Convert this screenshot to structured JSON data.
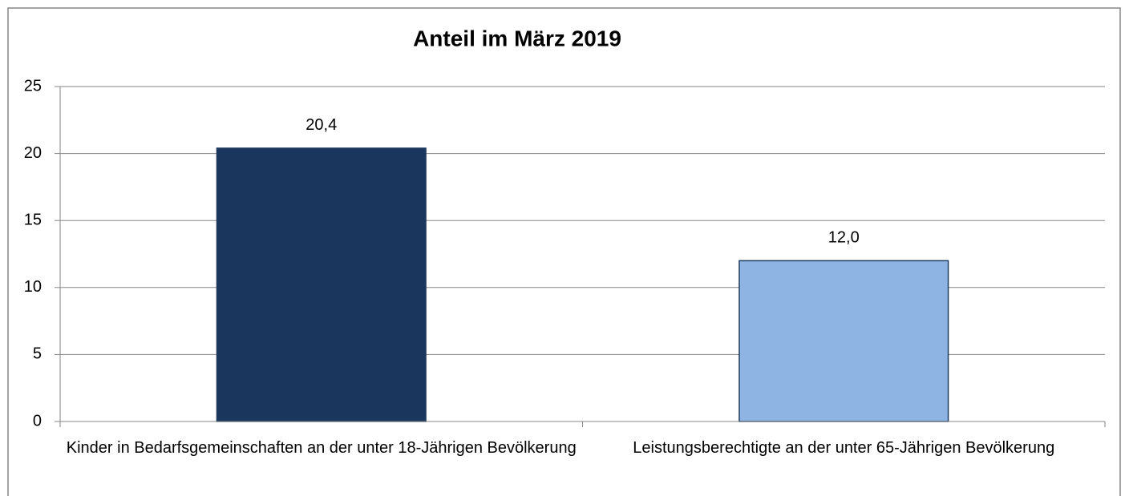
{
  "chart_data": {
    "type": "bar",
    "title": "Anteil im März 2019",
    "categories": [
      "Kinder in Bedarfsgemeinschaften an der unter 18-Jährigen Bevölkerung",
      "Leistungsberechtigte an der unter 65-Jährigen Bevölkerung"
    ],
    "values": [
      20.4,
      12.0
    ],
    "value_labels": [
      "20,4",
      "12,0"
    ],
    "colors": [
      "#1a365d",
      "#8eb4e3"
    ],
    "ylim": [
      0,
      25
    ],
    "yticks": [
      0,
      5,
      10,
      15,
      20,
      25
    ],
    "grid": true
  }
}
